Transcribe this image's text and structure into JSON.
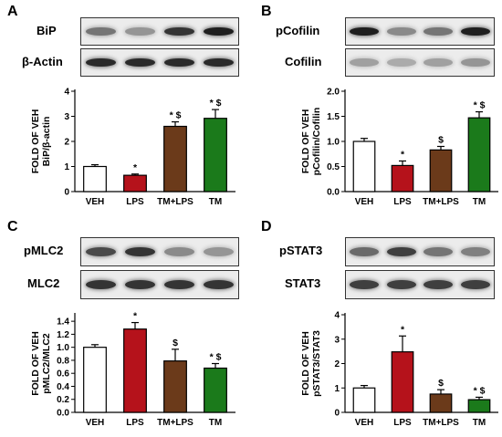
{
  "panels": {
    "A": {
      "letter": "A",
      "blots": [
        {
          "label": "BiP",
          "lanes": [
            0.55,
            0.4,
            0.85,
            0.95
          ]
        },
        {
          "label": "β-Actin",
          "lanes": [
            0.9,
            0.9,
            0.9,
            0.9
          ]
        }
      ]
    },
    "B": {
      "letter": "B",
      "blots": [
        {
          "label": "pCofilin",
          "lanes": [
            0.95,
            0.45,
            0.55,
            0.95
          ]
        },
        {
          "label": "Cofilin",
          "lanes": [
            0.35,
            0.3,
            0.35,
            0.4
          ]
        }
      ]
    },
    "C": {
      "letter": "C",
      "blots": [
        {
          "label": "pMLC2",
          "lanes": [
            0.75,
            0.85,
            0.45,
            0.4
          ]
        },
        {
          "label": "MLC2",
          "lanes": [
            0.85,
            0.85,
            0.85,
            0.85
          ]
        }
      ]
    },
    "D": {
      "letter": "D",
      "blots": [
        {
          "label": "pSTAT3",
          "lanes": [
            0.6,
            0.8,
            0.55,
            0.5
          ]
        },
        {
          "label": "STAT3",
          "lanes": [
            0.8,
            0.8,
            0.8,
            0.8
          ]
        }
      ]
    }
  },
  "colors": {
    "VEH": "#ffffff",
    "LPS": "#b5121b",
    "TM+LPS": "#6b3a1a",
    "TM": "#1b7a1b"
  },
  "chart_data": [
    {
      "panel": "A",
      "type": "bar",
      "categories": [
        "VEH",
        "LPS",
        "TM+LPS",
        "TM"
      ],
      "values": [
        1.0,
        0.65,
        2.6,
        2.92
      ],
      "errors": [
        0.07,
        0.05,
        0.18,
        0.35
      ],
      "annotations": [
        "",
        "*",
        "*$",
        "*$"
      ],
      "ylabel": [
        "FOLD OF VEH",
        "BiP/β-actin"
      ],
      "ylim": [
        0,
        4
      ],
      "yticks": [
        "0",
        "1",
        "2",
        "3",
        "4"
      ],
      "ytick_values": [
        0,
        1,
        2,
        3,
        4
      ]
    },
    {
      "panel": "B",
      "type": "bar",
      "categories": [
        "VEH",
        "LPS",
        "TM+LPS",
        "TM"
      ],
      "values": [
        1.0,
        0.52,
        0.83,
        1.47
      ],
      "errors": [
        0.06,
        0.09,
        0.07,
        0.12
      ],
      "annotations": [
        "",
        "*",
        "$",
        "*$"
      ],
      "ylabel": [
        "FOLD OF VEH",
        "pCofilin/Cofilin"
      ],
      "ylim": [
        0,
        2.0
      ],
      "yticks": [
        "0.0",
        "0.5",
        "1.0",
        "1.5",
        "2.0"
      ],
      "ytick_values": [
        0,
        0.5,
        1.0,
        1.5,
        2.0
      ]
    },
    {
      "panel": "C",
      "type": "bar",
      "categories": [
        "VEH",
        "LPS",
        "TM+LPS",
        "TM"
      ],
      "values": [
        1.0,
        1.28,
        0.79,
        0.68
      ],
      "errors": [
        0.04,
        0.1,
        0.18,
        0.07
      ],
      "annotations": [
        "",
        "*",
        "$",
        "*$"
      ],
      "ylabel": [
        "FOLD OF VEH",
        "pMLC2/MLC2"
      ],
      "ylim": [
        0,
        1.5
      ],
      "yticks": [
        "0.0",
        "0.2",
        "0.4",
        "0.6",
        "0.8",
        "1.0",
        "1.2",
        "1.4"
      ],
      "ytick_values": [
        0,
        0.2,
        0.4,
        0.6,
        0.8,
        1.0,
        1.2,
        1.4
      ]
    },
    {
      "panel": "D",
      "type": "bar",
      "categories": [
        "VEH",
        "LPS",
        "TM+LPS",
        "TM"
      ],
      "values": [
        1.0,
        2.48,
        0.75,
        0.52
      ],
      "errors": [
        0.1,
        0.65,
        0.18,
        0.1
      ],
      "annotations": [
        "",
        "*",
        "$",
        "*$"
      ],
      "ylabel": [
        "FOLD OF VEH",
        "pSTAT3/STAT3"
      ],
      "ylim": [
        0,
        4
      ],
      "yticks": [
        "0",
        "1",
        "2",
        "3",
        "4"
      ],
      "ytick_values": [
        0,
        1,
        2,
        3,
        4
      ]
    }
  ]
}
